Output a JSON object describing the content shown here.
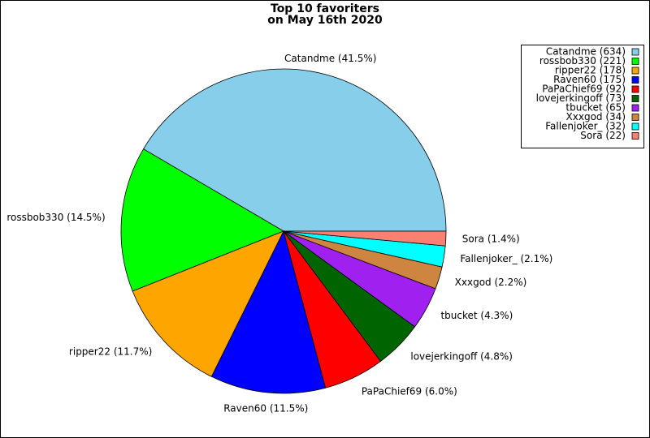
{
  "chart_data": {
    "type": "pie",
    "title": [
      "Top 10 favoriters",
      "on May 16th 2020"
    ],
    "values": [
      634,
      221,
      178,
      175,
      92,
      73,
      65,
      34,
      32,
      22
    ],
    "labels": [
      "Catandme (41.5%)",
      "rossbob330 (14.5%)",
      "ripper22 (11.7%)",
      "Raven60 (11.5%)",
      "PaPaChief69 (6.0%)",
      "lovejerkingoff (4.8%)",
      "tbucket (4.3%)",
      "Xxxgod (2.2%)",
      "Fallenjoker_ (2.1%)",
      "Sora (1.4%)"
    ],
    "legend_labels": [
      "Catandme (634)",
      "rossbob330 (221)",
      "ripper22 (178)",
      "Raven60 (175)",
      "PaPaChief69 (92)",
      "lovejerkingoff (73)",
      "tbucket (65)",
      "Xxxgod (34)",
      "Fallenjoker_ (32)",
      "Sora (22)"
    ],
    "colors": [
      "#87ceeb",
      "#00ff00",
      "#ffa500",
      "#0000ff",
      "#ff0000",
      "#006400",
      "#a020f0",
      "#cd853f",
      "#00ffff",
      "#fa8072"
    ],
    "legend_position": "upper right"
  }
}
